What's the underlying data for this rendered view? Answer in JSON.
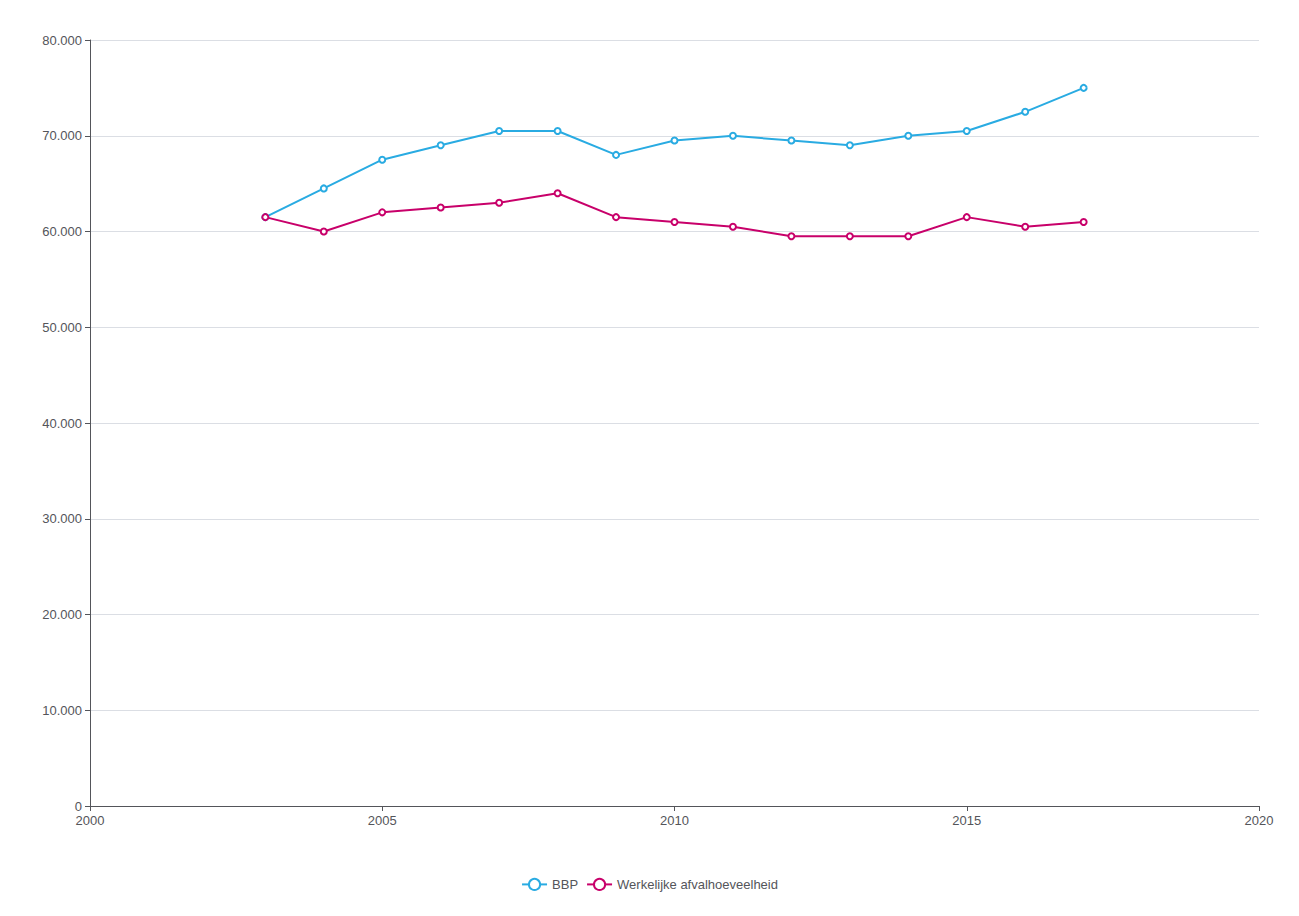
{
  "chart_data": {
    "type": "line",
    "x": [
      2003,
      2004,
      2005,
      2006,
      2007,
      2008,
      2009,
      2010,
      2011,
      2012,
      2013,
      2014,
      2015,
      2016,
      2017
    ],
    "series": [
      {
        "name": "BBP",
        "color": "#29ABE2",
        "values": [
          61500,
          64500,
          67500,
          69000,
          70500,
          70500,
          68000,
          69500,
          70000,
          69500,
          69000,
          70000,
          70500,
          72500,
          75000
        ]
      },
      {
        "name": "Werkelijke afvalhoeveelheid",
        "color": "#C8006A",
        "values": [
          61500,
          60000,
          62000,
          62500,
          63000,
          64000,
          61500,
          61000,
          60500,
          59500,
          59500,
          59500,
          61500,
          60500,
          61000
        ]
      }
    ],
    "xlim": [
      2000,
      2020
    ],
    "xticks": [
      2000,
      2005,
      2010,
      2015,
      2020
    ],
    "ylim": [
      0,
      80000
    ],
    "yticks": [
      0,
      {
        "value": 10000,
        "label": "10.000"
      },
      {
        "value": 20000,
        "label": "20.000"
      },
      {
        "value": 30000,
        "label": "30.000"
      },
      {
        "value": 40000,
        "label": "40.000"
      },
      {
        "value": 50000,
        "label": "50.000"
      },
      {
        "value": 60000,
        "label": "60.000"
      },
      {
        "value": 70000,
        "label": "70.000"
      },
      {
        "value": 80000,
        "label": "80.000"
      }
    ],
    "grid": true,
    "legend": "bottom"
  }
}
